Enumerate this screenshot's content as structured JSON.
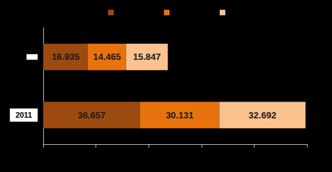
{
  "chart_data": {
    "type": "bar",
    "orientation": "horizontal",
    "stacked": true,
    "data_labels": true,
    "tick_labels": "y",
    "categories": [
      null,
      "2011"
    ],
    "series": [
      {
        "color": "#9c4a10",
        "values": [
          16.935,
          36.657
        ]
      },
      {
        "color": "#e8730e",
        "values": [
          14.465,
          30.131
        ]
      },
      {
        "color": "#fbc28f",
        "values": [
          15.847,
          32.692
        ]
      }
    ],
    "xlim": [
      0,
      100
    ],
    "xticks": [
      0,
      20,
      40,
      60,
      80,
      100
    ]
  }
}
